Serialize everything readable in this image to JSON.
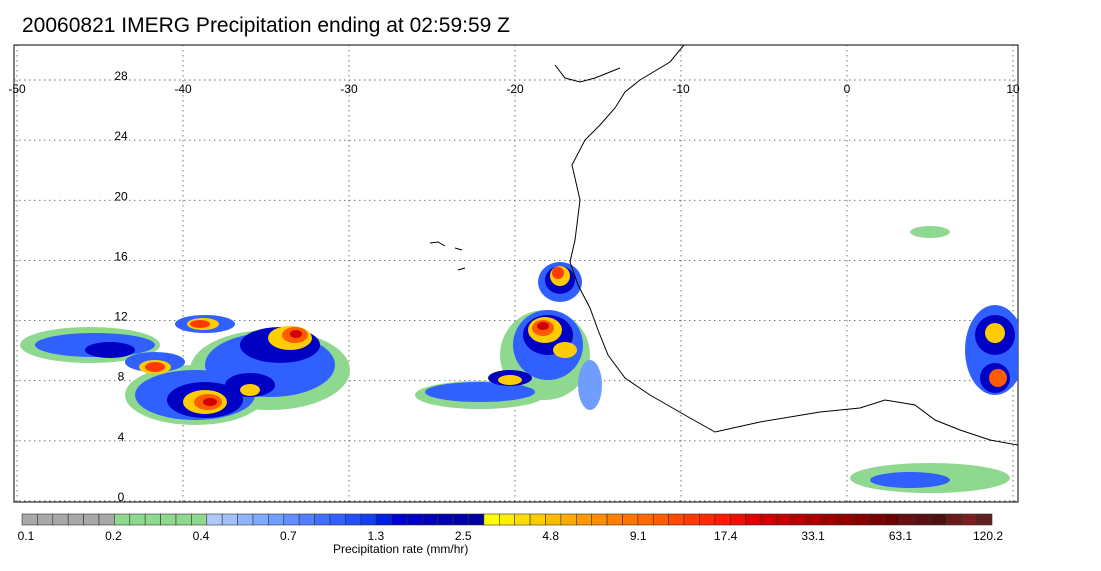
{
  "title": "20060821 IMERG Precipitation ending at 02:59:59 Z",
  "map": {
    "lon_range": [
      -50,
      10
    ],
    "lat_range": [
      -1,
      30
    ],
    "lon_ticks": [
      "-50",
      "-40",
      "-30",
      "-20",
      "-10",
      "0",
      "10"
    ],
    "lon_tick_values": [
      -50,
      -40,
      -30,
      -20,
      -10,
      0,
      10
    ],
    "lat_ticks": [
      "28",
      "24",
      "20",
      "16",
      "12",
      "8",
      "4",
      "0"
    ],
    "lat_tick_values": [
      28,
      24,
      20,
      16,
      12,
      8,
      4,
      0
    ],
    "grid": "dotted",
    "coastline_color": "#000000"
  },
  "colorbar": {
    "title": "Precipitation rate (mm/hr)",
    "labels": [
      "0.1",
      "0.2",
      "0.4",
      "0.7",
      "1.3",
      "2.5",
      "4.8",
      "9.1",
      "17.4",
      "33.1",
      "63.1",
      "120.2"
    ],
    "colors": [
      "#a8a8a8",
      "#a8a8a8",
      "#a8a8a8",
      "#a8a8a8",
      "#a8a8a8",
      "#a8a8a8",
      "#8fd88f",
      "#8fd88f",
      "#8fd88f",
      "#8fd88f",
      "#8fd88f",
      "#8fd88f",
      "#b0c8ff",
      "#a0c0ff",
      "#90b4ff",
      "#80aaff",
      "#709eff",
      "#6090ff",
      "#5080ff",
      "#4070ff",
      "#3060ff",
      "#2050f8",
      "#1040f0",
      "#0020e0",
      "#0000d0",
      "#0000c4",
      "#0000b8",
      "#0000b0",
      "#0000a8",
      "#0000a0",
      "#ffff00",
      "#ffee00",
      "#ffdd00",
      "#ffcc00",
      "#ffbb00",
      "#ffaa00",
      "#ff9900",
      "#ff8c00",
      "#ff8000",
      "#ff7400",
      "#ff6800",
      "#ff5c00",
      "#ff4a00",
      "#ff3a00",
      "#ff2a00",
      "#ff1a00",
      "#f01000",
      "#e00000",
      "#d00000",
      "#c40000",
      "#b80000",
      "#ac0000",
      "#a00000",
      "#940000",
      "#880000",
      "#7c0000",
      "#700000",
      "#641010",
      "#5a1010",
      "#501010",
      "#6a1a1a",
      "#7a2020",
      "#602020"
    ]
  }
}
